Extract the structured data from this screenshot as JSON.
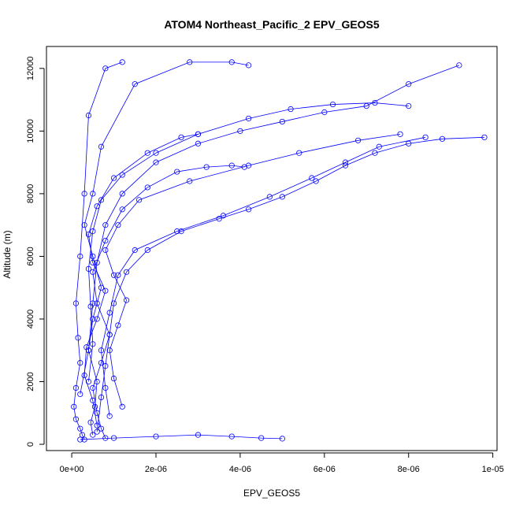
{
  "chart_data": {
    "type": "scatter",
    "title": "ATOM4 Northeast_Pacific_2 EPV_GEOS5",
    "xlabel": "EPV_GEOS5",
    "ylabel": "Altitude (m)",
    "xlim": [
      -6e-07,
      1.01e-05
    ],
    "ylim": [
      -200,
      12700
    ],
    "x_ticks": [
      {
        "value": 0,
        "label": "0e+00"
      },
      {
        "value": 2e-06,
        "label": "2e-06"
      },
      {
        "value": 4e-06,
        "label": "4e-06"
      },
      {
        "value": 6e-06,
        "label": "6e-06"
      },
      {
        "value": 8e-06,
        "label": "8e-06"
      },
      {
        "value": 1e-05,
        "label": "1e-05"
      }
    ],
    "y_ticks": [
      {
        "value": 0,
        "label": "0"
      },
      {
        "value": 2000,
        "label": "2000"
      },
      {
        "value": 4000,
        "label": "4000"
      },
      {
        "value": 6000,
        "label": "6000"
      },
      {
        "value": 8000,
        "label": "8000"
      },
      {
        "value": 10000,
        "label": "10000"
      },
      {
        "value": 12000,
        "label": "12000"
      }
    ],
    "color": "#0000ff",
    "marker": "open-circle",
    "grid": false,
    "legend": "none",
    "series": [
      {
        "x": [
          3e-07,
          2.5e-07,
          2e-07,
          1e-07,
          5e-08,
          1e-07,
          2e-07,
          1.5e-07,
          1e-07,
          2e-07,
          3e-07,
          4e-07,
          8e-07,
          1.2e-06
        ],
        "y": [
          150,
          300,
          500,
          800,
          1200,
          1800,
          2600,
          3400,
          4500,
          6000,
          8000,
          10500,
          12000,
          12200
        ]
      },
      {
        "x": [
          5e-07,
          4.5e-07,
          5.5e-07,
          6e-07,
          4e-07,
          5e-07,
          7e-07,
          5e-07,
          3e-07,
          5e-07,
          7e-07,
          1.5e-06,
          2.8e-06,
          3.8e-06,
          4.2e-06
        ],
        "y": [
          300,
          700,
          1200,
          2000,
          3000,
          4000,
          5000,
          6000,
          7000,
          8000,
          9500,
          11500,
          12200,
          12200,
          12100
        ]
      },
      {
        "x": [
          8e-07,
          7e-07,
          6e-07,
          5e-07,
          7e-07,
          9e-07,
          6e-07,
          5e-07,
          8e-07,
          1.2e-06,
          1.8e-06,
          2.5e-06,
          3.2e-06,
          3.8e-06,
          4.1e-06
        ],
        "y": [
          200,
          500,
          1000,
          1800,
          2600,
          3500,
          4500,
          5500,
          6500,
          7500,
          8200,
          8700,
          8850,
          8900,
          8850
        ]
      },
      {
        "x": [
          6e-07,
          7e-07,
          8e-07,
          9e-07,
          1e-06,
          1.3e-06,
          1.8e-06,
          2.6e-06,
          3.5e-06,
          4.2e-06,
          5e-06,
          5.8e-06,
          6.5e-06,
          7.2e-06,
          8e-06,
          8.8e-06,
          9.8e-06
        ],
        "y": [
          400,
          1500,
          2500,
          3500,
          4500,
          5500,
          6200,
          6800,
          7200,
          7500,
          7900,
          8400,
          8900,
          9300,
          9600,
          9750,
          9800
        ]
      },
      {
        "x": [
          2e-07,
          4e-07,
          5e-07,
          6e-07,
          8e-07,
          1.2e-06,
          2e-06,
          3e-06,
          4e-06,
          5e-06,
          6e-06,
          7e-06,
          8e-06,
          9.2e-06
        ],
        "y": [
          1600,
          3000,
          4500,
          5800,
          7000,
          8000,
          9000,
          9600,
          10000,
          10300,
          10600,
          10800,
          11500,
          12100
        ]
      },
      {
        "x": [
          9e-07,
          8e-07,
          7e-07,
          9e-07,
          1.1e-06,
          1.5e-06,
          2.5e-06,
          3.6e-06,
          4.7e-06,
          5.7e-06,
          6.5e-06,
          7.3e-06,
          8.4e-06
        ],
        "y": [
          900,
          1800,
          3000,
          4200,
          5400,
          6200,
          6800,
          7300,
          7900,
          8500,
          9000,
          9500,
          9800
        ]
      },
      {
        "x": [
          4e-07,
          5e-07,
          4.5e-07,
          4e-07,
          5e-07,
          7e-07,
          1.2e-06,
          2e-06,
          3e-06,
          4.2e-06,
          5.2e-06,
          6.2e-06,
          7.2e-06,
          8e-06
        ],
        "y": [
          2000,
          3200,
          4400,
          5600,
          6800,
          7800,
          8600,
          9300,
          9900,
          10400,
          10700,
          10850,
          10900,
          10800
        ]
      },
      {
        "x": [
          2e-07,
          1e-06,
          2e-06,
          3e-06,
          3.8e-06,
          4.5e-06,
          5e-06
        ],
        "y": [
          150,
          200,
          250,
          300,
          250,
          200,
          180
        ]
      },
      {
        "x": [
          6e-07,
          5e-07,
          3e-07,
          3.5e-07,
          6e-07,
          8e-07,
          5e-07,
          4e-07,
          6e-07,
          1e-06,
          1.8e-06,
          2.6e-06,
          3e-06
        ],
        "y": [
          600,
          1400,
          2200,
          3100,
          4000,
          4900,
          5800,
          6700,
          7600,
          8500,
          9300,
          9800,
          9900
        ]
      },
      {
        "x": [
          1.2e-06,
          1e-06,
          9e-07,
          1.1e-06,
          1.3e-06,
          1e-06,
          8e-07,
          1.1e-06,
          1.6e-06,
          2.8e-06,
          4.2e-06,
          5.4e-06,
          6.8e-06,
          7.8e-06
        ],
        "y": [
          1200,
          2100,
          3000,
          3800,
          4600,
          5400,
          6200,
          7000,
          7800,
          8400,
          8900,
          9300,
          9700,
          9900
        ]
      }
    ]
  }
}
